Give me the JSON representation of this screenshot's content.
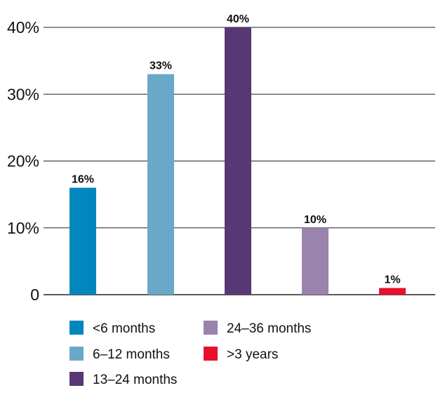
{
  "chart_data": {
    "type": "bar",
    "categories": [
      "<6 months",
      "6–12 months",
      "13–24 months",
      "24–36 months",
      ">3 years"
    ],
    "values": [
      16,
      33,
      40,
      10,
      1
    ],
    "value_labels": [
      "16%",
      "33%",
      "40%",
      "10%",
      "1%"
    ],
    "colors": [
      "#0087bd",
      "#6aa8c9",
      "#573874",
      "#9a83ac",
      "#e8102e"
    ],
    "ylim": [
      0,
      40
    ],
    "yticks": [
      0,
      10,
      20,
      30,
      40
    ],
    "ytick_labels": [
      "0",
      "10%",
      "20%",
      "30%",
      "40%"
    ],
    "grid": true,
    "legend": {
      "placement": "bottom",
      "entries": [
        "<6 months",
        "6–12 months",
        "13–24 months",
        "24–36 months",
        ">3 years"
      ]
    },
    "title": "",
    "xlabel": "",
    "ylabel": ""
  }
}
